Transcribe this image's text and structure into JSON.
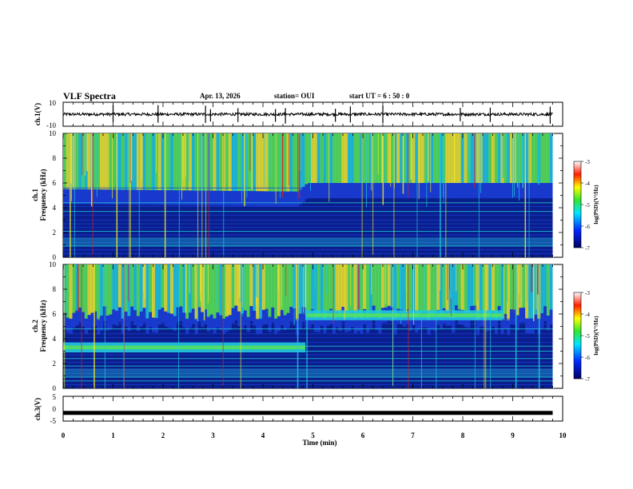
{
  "header": {
    "title": "VLF Spectra",
    "date": "Apr. 13, 2026",
    "station": "station= OUI",
    "start": "start  UT =  6  : 50 : 0"
  },
  "colors": {
    "deep_blue": "#0a1e8c",
    "blue": "#1a3cd2",
    "cyan": "#21c8dc",
    "green": "#5ae650",
    "yellow": "#f0e628",
    "red": "#e11e1e"
  },
  "chart_data": [
    {
      "type": "line",
      "name": "ch1-waveform",
      "ylabel": "ch.1(V)",
      "ylim": [
        -10,
        10
      ],
      "yticks": [
        "10",
        "-10"
      ],
      "xlim": [
        0,
        10
      ],
      "baseline": 0,
      "noise_amplitude": 1.2,
      "spike_times_min": [
        1.0,
        1.9,
        2.85,
        2.95,
        3.5,
        4.25,
        4.45,
        5.45,
        5.75,
        6.4,
        7.95,
        8.55,
        9.75
      ]
    },
    {
      "type": "heatmap",
      "name": "ch1-spectrogram",
      "ylabel": "ch.1\nFrequency  (kHz)",
      "ylim": [
        0,
        10
      ],
      "yticks": [
        "0",
        "2",
        "4",
        "6",
        "8",
        "10"
      ],
      "xlim": [
        0,
        9.8
      ],
      "colorbar": {
        "label": "log(PSD)(V²/Hz)",
        "range": [
          -7,
          -3
        ],
        "ticks": [
          "-3",
          "-4",
          "-5",
          "-6",
          "-7"
        ]
      },
      "upper_band_edge_khz": [
        {
          "t": 0,
          "f": 5.5
        },
        {
          "t": 4.7,
          "f": 5.3
        },
        {
          "t": 4.9,
          "f": 6.0
        },
        {
          "t": 9.8,
          "f": 6.0
        }
      ]
    },
    {
      "type": "heatmap",
      "name": "ch2-spectrogram",
      "ylabel": "ch.2\nFrequency  (kHz)",
      "ylim": [
        0,
        10
      ],
      "yticks": [
        "0",
        "2",
        "4",
        "6",
        "8",
        "10"
      ],
      "xlim": [
        0,
        9.8
      ],
      "colorbar": {
        "label": "log(PSD)(V²/Hz)",
        "range": [
          -7,
          -3
        ],
        "ticks": [
          "-3",
          "-4",
          "-5",
          "-6",
          "-7"
        ]
      },
      "emission_bands": [
        {
          "t_start": 0,
          "t_end": 4.85,
          "f_center_khz": 3.3
        },
        {
          "t_start": 4.85,
          "t_end": 8.8,
          "f_center_khz": 5.9
        }
      ]
    },
    {
      "type": "line",
      "name": "ch3-waveform",
      "ylabel": "ch.3(V)",
      "ylim": [
        -5,
        5
      ],
      "yticks": [
        "5",
        "0",
        "-5"
      ],
      "xlim": [
        0,
        10
      ],
      "baseline": -1.7
    }
  ],
  "xaxis": {
    "label": "Time  (min)",
    "ticks": [
      "0",
      "1",
      "2",
      "3",
      "4",
      "5",
      "6",
      "7",
      "8",
      "9",
      "10"
    ]
  }
}
